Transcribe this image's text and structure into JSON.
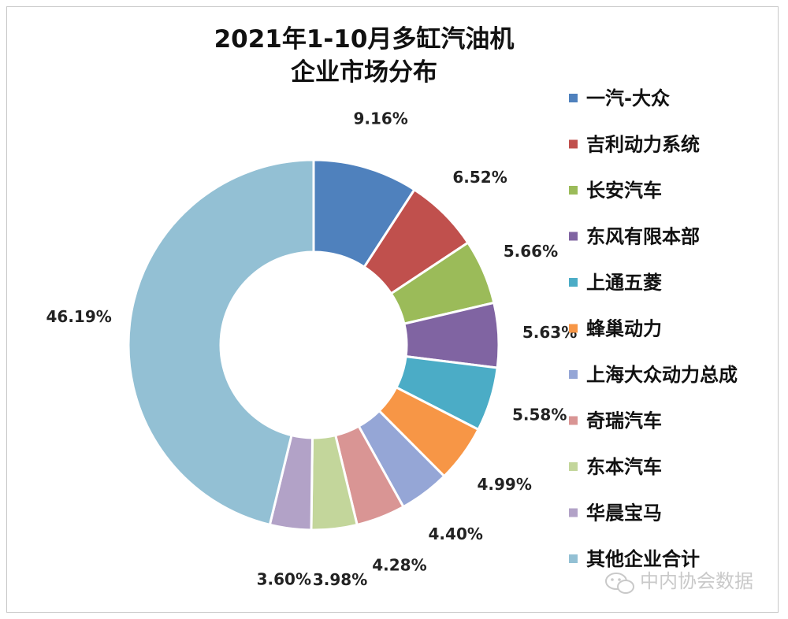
{
  "chart_data": {
    "type": "pie",
    "donut": true,
    "title_lines": [
      "2021年1-10月多缸汽油机",
      "企业市场分布"
    ],
    "legend_position": "right",
    "slices": [
      {
        "label": "一汽-大众",
        "value": 9.16,
        "display": "9.16%",
        "color": "#4f81bd"
      },
      {
        "label": "吉利动力系统",
        "value": 6.52,
        "display": "6.52%",
        "color": "#c0504d"
      },
      {
        "label": "长安汽车",
        "value": 5.66,
        "display": "5.66%",
        "color": "#9bbb59"
      },
      {
        "label": "东风有限本部",
        "value": 5.63,
        "display": "5.63%",
        "color": "#8064a2"
      },
      {
        "label": "上通五菱",
        "value": 5.58,
        "display": "5.58%",
        "color": "#4bacc6"
      },
      {
        "label": "蜂巢动力",
        "value": 4.99,
        "display": "4.99%",
        "color": "#f79646"
      },
      {
        "label": "上海大众动力总成",
        "value": 4.4,
        "display": "4.40%",
        "color": "#95a6d6"
      },
      {
        "label": "奇瑞汽车",
        "value": 4.28,
        "display": "4.28%",
        "color": "#d99594"
      },
      {
        "label": "东本汽车",
        "value": 3.98,
        "display": "3.98%",
        "color": "#c3d69b"
      },
      {
        "label": "华晨宝马",
        "value": 3.6,
        "display": "3.60%",
        "color": "#b2a2c7"
      },
      {
        "label": "其他企业合计",
        "value": 46.19,
        "display": "46.19%",
        "color": "#93c0d4"
      }
    ]
  },
  "watermark": {
    "text": "中内协会数据",
    "icon": "wechat-icon"
  }
}
